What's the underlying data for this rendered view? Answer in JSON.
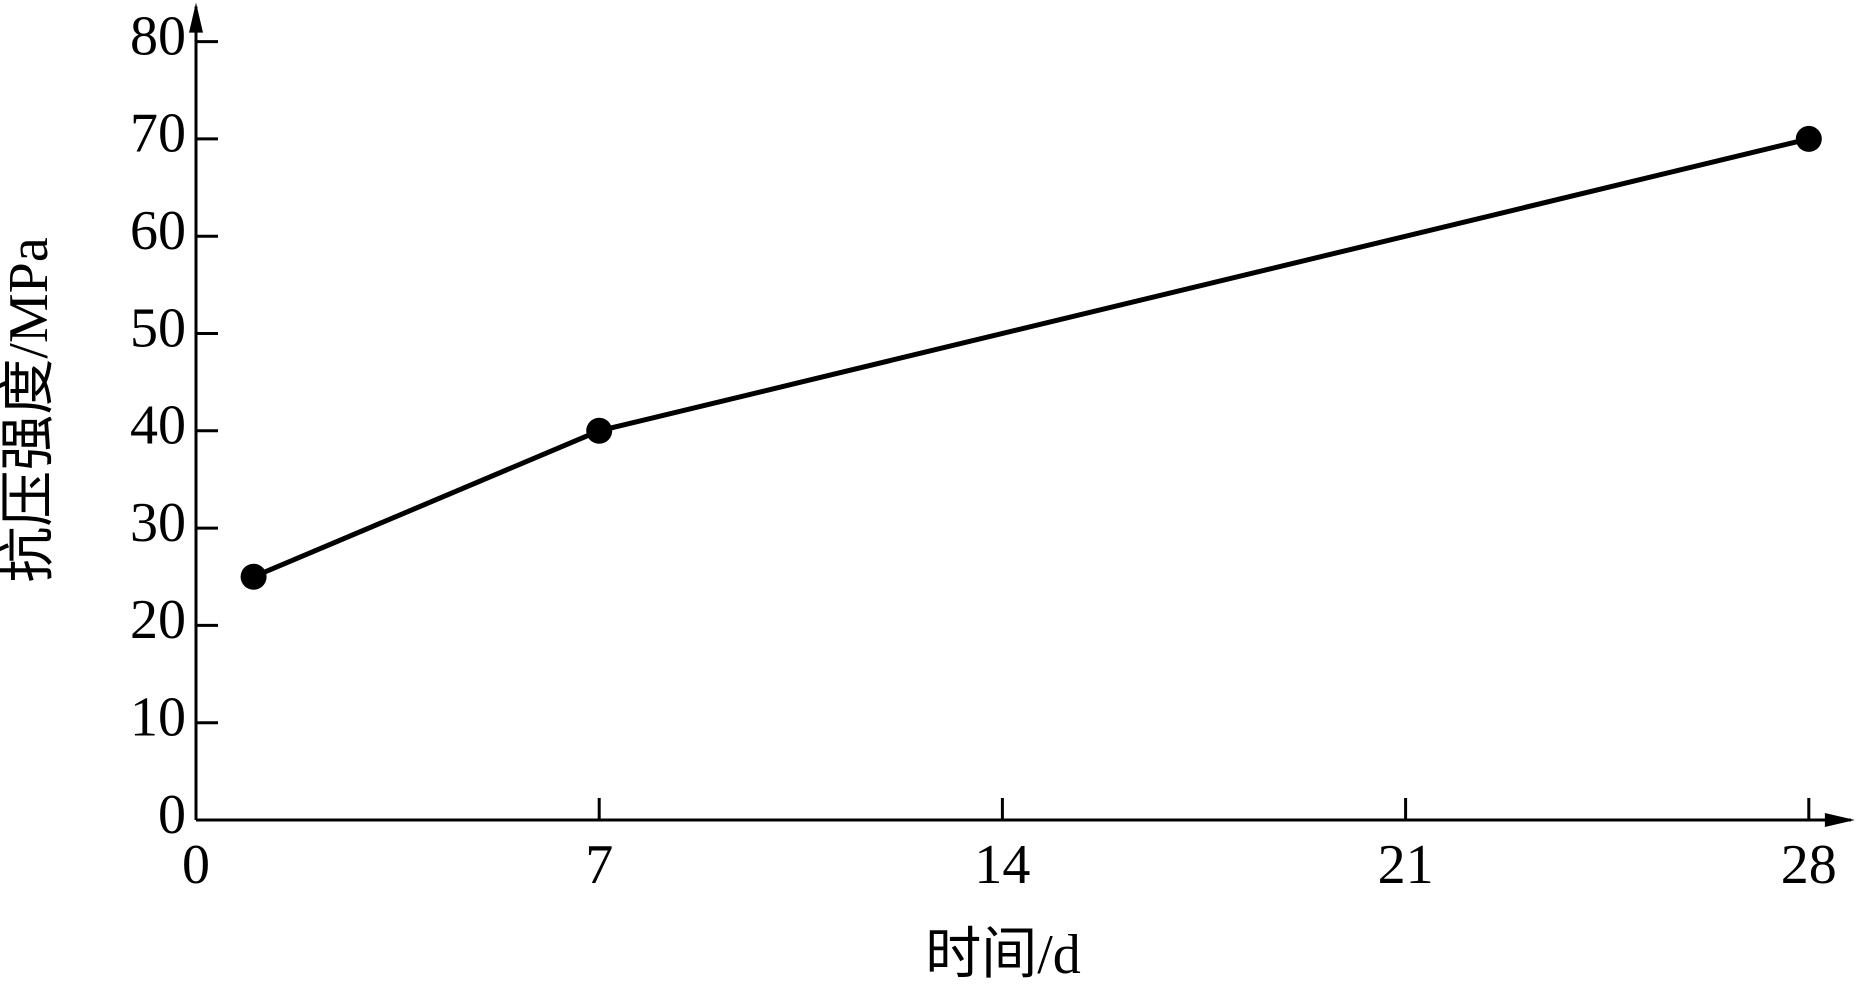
{
  "chart_data": {
    "type": "line",
    "x_label": "时间/d",
    "y_label": "抗压强度/MPa",
    "x": [
      1,
      7,
      28
    ],
    "series": [
      {
        "name": "抗压强度",
        "color": "#000000",
        "values": [
          25,
          40,
          70
        ]
      }
    ],
    "xlim": [
      0,
      28.8
    ],
    "xticks": [
      0,
      7,
      14,
      21,
      28
    ],
    "ylim": [
      0,
      84
    ],
    "yticks": [
      0,
      10,
      20,
      30,
      40,
      50,
      60,
      70,
      80
    ],
    "grid": false,
    "legend": false
  }
}
